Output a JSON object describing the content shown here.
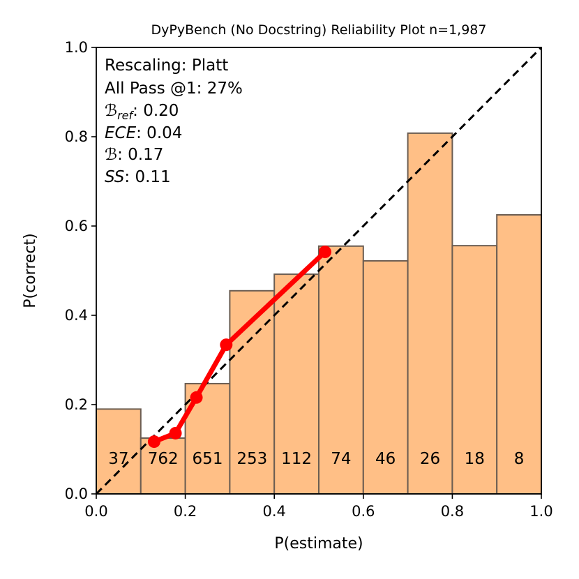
{
  "chart_data": {
    "type": "bar",
    "title": "DyPyBench (No Docstring) Reliability Plot n=1,987",
    "xlabel": "P(estimate)",
    "ylabel": "P(correct)",
    "xlim": [
      0.0,
      1.0
    ],
    "ylim": [
      0.0,
      1.0
    ],
    "xticks": [
      "0.0",
      "0.2",
      "0.4",
      "0.6",
      "0.8",
      "1.0"
    ],
    "yticks": [
      "0.0",
      "0.2",
      "0.4",
      "0.6",
      "0.8",
      "1.0"
    ],
    "bins": [
      {
        "x0": 0.0,
        "x1": 0.1,
        "accuracy": 0.19,
        "count": "37"
      },
      {
        "x0": 0.1,
        "x1": 0.2,
        "accuracy": 0.125,
        "count": "762"
      },
      {
        "x0": 0.2,
        "x1": 0.3,
        "accuracy": 0.247,
        "count": "651"
      },
      {
        "x0": 0.3,
        "x1": 0.4,
        "accuracy": 0.455,
        "count": "253"
      },
      {
        "x0": 0.4,
        "x1": 0.5,
        "accuracy": 0.492,
        "count": "112"
      },
      {
        "x0": 0.5,
        "x1": 0.6,
        "accuracy": 0.555,
        "count": "74"
      },
      {
        "x0": 0.6,
        "x1": 0.7,
        "accuracy": 0.522,
        "count": "46"
      },
      {
        "x0": 0.7,
        "x1": 0.8,
        "accuracy": 0.808,
        "count": "26"
      },
      {
        "x0": 0.8,
        "x1": 0.9,
        "accuracy": 0.556,
        "count": "18"
      },
      {
        "x0": 0.9,
        "x1": 1.0,
        "accuracy": 0.625,
        "count": "8"
      }
    ],
    "calibration_curve": [
      {
        "x": 0.13,
        "y": 0.117
      },
      {
        "x": 0.178,
        "y": 0.136
      },
      {
        "x": 0.225,
        "y": 0.216
      },
      {
        "x": 0.292,
        "y": 0.334
      },
      {
        "x": 0.514,
        "y": 0.542
      }
    ],
    "annotations": {
      "rescaling": "Rescaling: Platt",
      "pass_at_1": "All Pass @1: 27%",
      "b_ref_symbol": "ℬ",
      "b_ref_sub": "ref",
      "b_ref_value": ": 0.20",
      "ece_symbol": "ECE",
      "ece_value": ": 0.04",
      "b_symbol": "ℬ",
      "b_value": ": 0.17",
      "ss_symbol": "SS",
      "ss_value": ": 0.11"
    },
    "colors": {
      "bar_fill": "#ffbf86",
      "bar_edge": "#6b5d52",
      "curve": "#ff0000",
      "diagonal": "#000000"
    }
  }
}
